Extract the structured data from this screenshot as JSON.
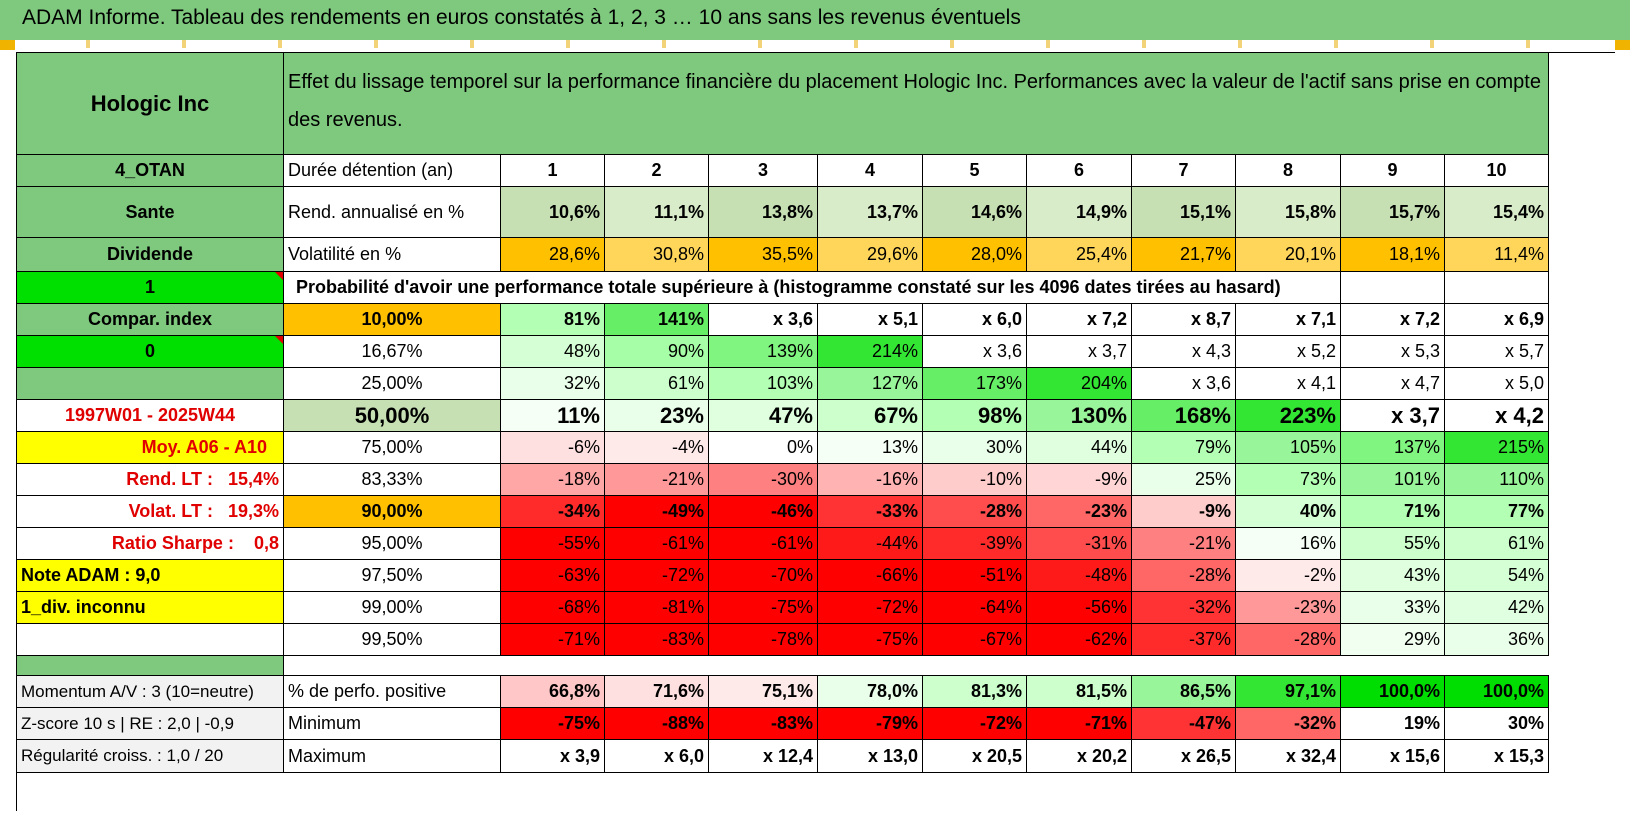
{
  "title": "ADAM Informe. Tableau des rendements en euros constatés à 1, 2, 3 … 10 ans sans les revenus éventuels",
  "company": "Hologic Inc",
  "header_text": "Effet du lissage temporel sur la performance financière du placement Hologic Inc. Performances avec la valeur de l'actif sans prise en compte des revenus.",
  "sidebar": {
    "code": "4_OTAN",
    "sector": "Sante",
    "dividende": "Dividende",
    "green1": "1",
    "compar": "Compar. index",
    "green0": "0",
    "period": "1997W01 - 2025W44",
    "moy": "Moy. A06 - A10",
    "rend_lt_label": "Rend. LT :",
    "rend_lt_value": "15,4%",
    "volat_lt_label": "Volat. LT :",
    "volat_lt_value": "19,3%",
    "sharpe_label": "Ratio Sharpe :",
    "sharpe_value": "0,8",
    "note": "Note ADAM : 9,0",
    "div": "1_div. inconnu",
    "momentum": "Momentum A/V : 3 (10=neutre)",
    "zscore": "Z-score 10 s | RE : 2,0 | -0,9",
    "regularite": "Régularité croiss. : 1,0 / 20"
  },
  "labels": {
    "duree": "Durée détention (an)",
    "rend": "Rend. annualisé en %",
    "vol": "Volatilité en %",
    "proba": "Probabilité d'avoir une performance totale supérieure à (histogramme constaté sur les 4096 dates tirées au hasard)",
    "perfpos": "% de perfo. positive",
    "min": "Minimum",
    "max": "Maximum"
  },
  "years": [
    "1",
    "2",
    "3",
    "4",
    "5",
    "6",
    "7",
    "8",
    "9",
    "10"
  ],
  "rend": [
    "10,6%",
    "11,1%",
    "13,8%",
    "13,7%",
    "14,6%",
    "14,9%",
    "15,1%",
    "15,8%",
    "15,7%",
    "15,4%"
  ],
  "vol": [
    "28,6%",
    "30,8%",
    "35,5%",
    "29,6%",
    "28,0%",
    "25,4%",
    "21,7%",
    "20,1%",
    "18,1%",
    "11,4%"
  ],
  "proba_rows": [
    {
      "pct": "10,00%",
      "values": [
        "81%",
        "141%",
        "x 3,6",
        "x 5,1",
        "x 6,0",
        "x 7,2",
        "x 8,7",
        "x 7,1",
        "x 7,2",
        "x 6,9"
      ]
    },
    {
      "pct": "16,67%",
      "values": [
        "48%",
        "90%",
        "139%",
        "214%",
        "x 3,6",
        "x 3,7",
        "x 4,3",
        "x 5,2",
        "x 5,3",
        "x 5,7"
      ]
    },
    {
      "pct": "25,00%",
      "values": [
        "32%",
        "61%",
        "103%",
        "127%",
        "173%",
        "204%",
        "x 3,6",
        "x 4,1",
        "x 4,7",
        "x 5,0"
      ]
    },
    {
      "pct": "50,00%",
      "values": [
        "11%",
        "23%",
        "47%",
        "67%",
        "98%",
        "130%",
        "168%",
        "223%",
        "x 3,7",
        "x 4,2"
      ]
    },
    {
      "pct": "75,00%",
      "values": [
        "-6%",
        "-4%",
        "0%",
        "13%",
        "30%",
        "44%",
        "79%",
        "105%",
        "137%",
        "215%"
      ]
    },
    {
      "pct": "83,33%",
      "values": [
        "-18%",
        "-21%",
        "-30%",
        "-16%",
        "-10%",
        "-9%",
        "25%",
        "73%",
        "101%",
        "110%"
      ]
    },
    {
      "pct": "90,00%",
      "values": [
        "-34%",
        "-49%",
        "-46%",
        "-33%",
        "-28%",
        "-23%",
        "-9%",
        "40%",
        "71%",
        "77%"
      ]
    },
    {
      "pct": "95,00%",
      "values": [
        "-55%",
        "-61%",
        "-61%",
        "-44%",
        "-39%",
        "-31%",
        "-21%",
        "16%",
        "55%",
        "61%"
      ]
    },
    {
      "pct": "97,50%",
      "values": [
        "-63%",
        "-72%",
        "-70%",
        "-66%",
        "-51%",
        "-48%",
        "-28%",
        "-2%",
        "43%",
        "54%"
      ]
    },
    {
      "pct": "99,00%",
      "values": [
        "-68%",
        "-81%",
        "-75%",
        "-72%",
        "-64%",
        "-56%",
        "-32%",
        "-23%",
        "33%",
        "42%"
      ]
    },
    {
      "pct": "99,50%",
      "values": [
        "-71%",
        "-83%",
        "-78%",
        "-75%",
        "-67%",
        "-62%",
        "-37%",
        "-28%",
        "29%",
        "36%"
      ]
    }
  ],
  "perfpos": [
    "66,8%",
    "71,6%",
    "75,1%",
    "78,0%",
    "81,3%",
    "81,5%",
    "86,5%",
    "97,1%",
    "100,0%",
    "100,0%"
  ],
  "min": [
    "-75%",
    "-88%",
    "-83%",
    "-79%",
    "-72%",
    "-71%",
    "-47%",
    "-32%",
    "19%",
    "30%"
  ],
  "max": [
    "x 3,9",
    "x 6,0",
    "x 12,4",
    "x 13,0",
    "x 20,5",
    "x 20,2",
    "x 26,5",
    "x 32,4",
    "x 15,6",
    "x 15,3"
  ],
  "colors": {
    "header_green": "#7fc97f",
    "light_green": "#c6e0b4",
    "orange": "#ffc000",
    "yellow": "#ffff00",
    "bright_green": "#00e000",
    "red_text": "#e00000"
  }
}
